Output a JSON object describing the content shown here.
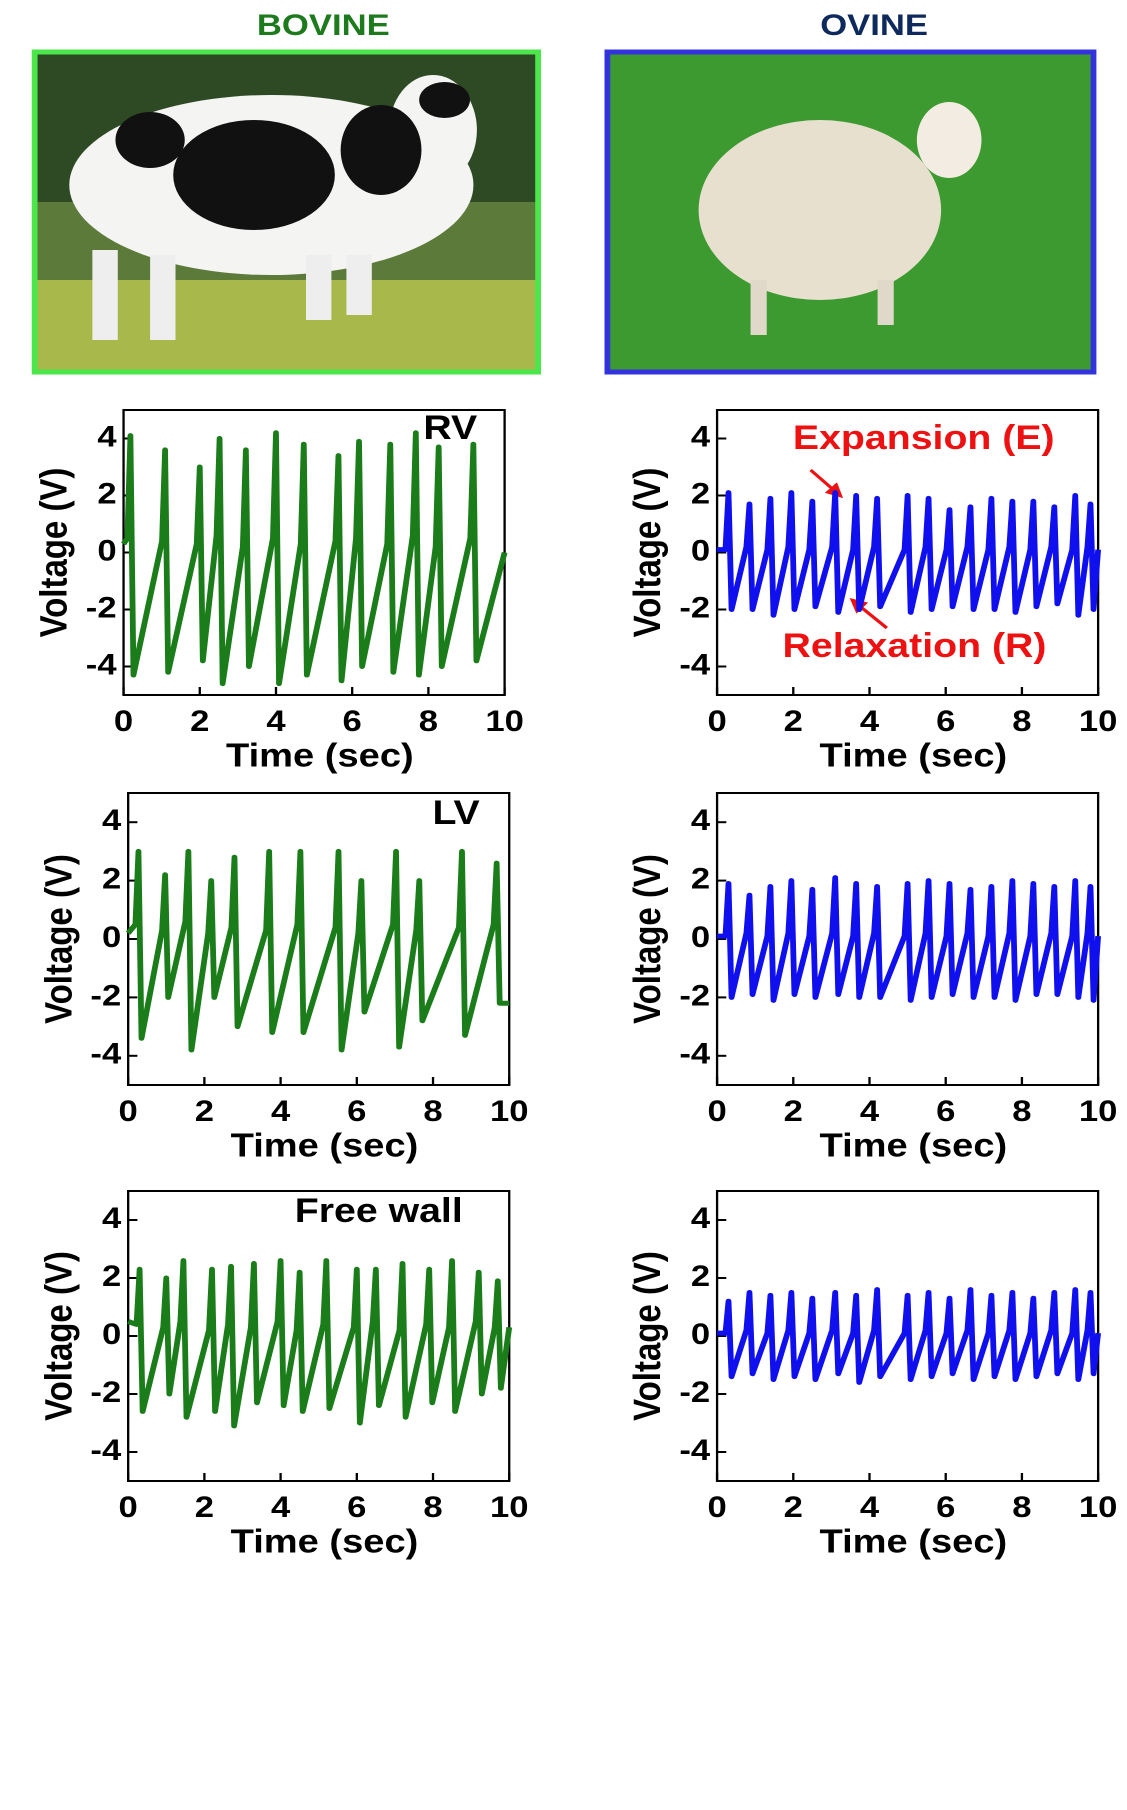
{
  "headers": [
    {
      "text": "BOVINE",
      "color": "#1d7a1d"
    },
    {
      "text": "OVINE",
      "color": "#0e2a5c"
    }
  ],
  "chart_data": [
    {
      "type": "line",
      "annotation": "RV",
      "xlabel": "Time (sec)",
      "ylabel": "Voltage (V)",
      "xlim": [
        0,
        10
      ],
      "ylim": [
        -5,
        5
      ],
      "xticks": [
        0,
        2,
        4,
        6,
        8,
        10
      ],
      "yticks": [
        -4,
        -2,
        0,
        2,
        4
      ],
      "x": [
        0,
        0.1,
        0.18,
        0.26,
        1.01,
        1.09,
        1.17,
        1.92,
        2.0,
        2.08,
        2.44,
        2.52,
        2.6,
        3.13,
        3.21,
        3.29,
        3.92,
        4.0,
        4.08,
        4.65,
        4.73,
        4.81,
        5.56,
        5.64,
        5.72,
        6.1,
        6.18,
        6.26,
        6.92,
        7.0,
        7.08,
        7.59,
        7.67,
        7.75,
        8.19,
        8.27,
        8.35,
        9.1,
        9.18,
        9.26,
        10
      ],
      "series": [
        {
          "color": "#1a7d1a",
          "values": [
            0.3,
            0.5,
            4.1,
            -4.3,
            0.4,
            3.6,
            -4.2,
            0.3,
            3.0,
            -3.8,
            0.6,
            4.0,
            -4.6,
            0.2,
            3.6,
            -4.0,
            0.5,
            4.2,
            -4.6,
            0.3,
            3.8,
            -4.3,
            0.4,
            3.4,
            -4.5,
            0.5,
            3.9,
            -4.0,
            0.3,
            3.8,
            -4.2,
            0.6,
            4.2,
            -4.3,
            0.2,
            3.7,
            -4.0,
            0.5,
            3.8,
            -3.8,
            0
          ]
        }
      ]
    },
    {
      "type": "line",
      "annotations": [
        "Expansion (E)",
        "Relaxation (R)"
      ],
      "xlabel": "Time (sec)",
      "ylabel": "Voltage (V)",
      "xlim": [
        0,
        10
      ],
      "ylim": [
        -5,
        5
      ],
      "xticks": [
        0,
        2,
        4,
        6,
        8,
        10
      ],
      "yticks": [
        -4,
        -2,
        0,
        2,
        4
      ],
      "x": [
        0,
        0.22,
        0.3,
        0.38,
        0.77,
        0.85,
        0.93,
        1.32,
        1.4,
        1.48,
        1.87,
        1.95,
        2.03,
        2.42,
        2.5,
        2.58,
        3.02,
        3.1,
        3.18,
        3.57,
        3.65,
        3.73,
        4.12,
        4.2,
        4.28,
        4.92,
        5.0,
        5.08,
        5.47,
        5.55,
        5.63,
        6.02,
        6.1,
        6.18,
        6.57,
        6.65,
        6.73,
        7.12,
        7.2,
        7.28,
        7.67,
        7.75,
        7.83,
        8.22,
        8.3,
        8.38,
        8.77,
        8.85,
        8.93,
        9.32,
        9.4,
        9.48,
        9.72,
        9.8,
        9.88,
        10
      ],
      "series": [
        {
          "color": "#1010ee",
          "values": [
            0.1,
            0.1,
            2.1,
            -2.0,
            0.2,
            1.7,
            -2.0,
            0.1,
            1.9,
            -2.2,
            0.2,
            2.1,
            -2.0,
            0.1,
            1.8,
            -1.9,
            0.2,
            2.1,
            -2.1,
            0.1,
            2.0,
            -2.0,
            0.2,
            1.9,
            -1.9,
            0.1,
            2.0,
            -2.1,
            0.2,
            1.9,
            -2.0,
            0.1,
            1.5,
            -1.9,
            0.2,
            1.6,
            -2.0,
            0.1,
            1.9,
            -2.0,
            0.2,
            1.8,
            -2.1,
            0.1,
            1.8,
            -1.9,
            0.2,
            1.6,
            -1.8,
            0.1,
            2.0,
            -2.2,
            0.2,
            1.7,
            -2.0,
            0.1
          ]
        }
      ]
    },
    {
      "type": "line",
      "annotation": "LV",
      "xlabel": "Time (sec)",
      "ylabel": "Voltage (V)",
      "xlim": [
        0,
        10
      ],
      "ylim": [
        -5,
        5
      ],
      "xticks": [
        0,
        2,
        4,
        6,
        8,
        10
      ],
      "yticks": [
        -4,
        -2,
        0,
        2,
        4
      ],
      "x": [
        0,
        0.19,
        0.27,
        0.35,
        0.89,
        0.97,
        1.05,
        1.5,
        1.58,
        1.66,
        2.1,
        2.18,
        2.26,
        2.71,
        2.79,
        2.87,
        3.62,
        3.7,
        3.78,
        4.44,
        4.52,
        4.6,
        5.44,
        5.52,
        5.6,
        6.04,
        6.12,
        6.2,
        6.95,
        7.03,
        7.11,
        7.56,
        7.64,
        7.72,
        8.68,
        8.76,
        8.84,
        9.59,
        9.67,
        9.75,
        10
      ],
      "series": [
        {
          "color": "#1a7d1a",
          "values": [
            0.2,
            0.5,
            3.0,
            -3.4,
            0.3,
            2.2,
            -2.0,
            0.6,
            3.0,
            -3.8,
            0.2,
            2.0,
            -2.0,
            0.4,
            2.8,
            -3.0,
            0.3,
            3.0,
            -3.2,
            0.5,
            3.0,
            -3.2,
            0.4,
            3.0,
            -3.8,
            0.2,
            2.0,
            -2.5,
            0.5,
            3.0,
            -3.7,
            0.3,
            2.0,
            -2.8,
            0.4,
            3.0,
            -3.3,
            0.5,
            2.6,
            -2.2,
            -2.2
          ]
        }
      ]
    },
    {
      "type": "line",
      "xlabel": "Time (sec)",
      "ylabel": "Voltage (V)",
      "xlim": [
        0,
        10
      ],
      "ylim": [
        -5,
        5
      ],
      "xticks": [
        0,
        2,
        4,
        6,
        8,
        10
      ],
      "yticks": [
        -4,
        -2,
        0,
        2,
        4
      ],
      "x": [
        0,
        0.22,
        0.3,
        0.38,
        0.77,
        0.85,
        0.93,
        1.32,
        1.4,
        1.48,
        1.87,
        1.95,
        2.03,
        2.42,
        2.5,
        2.58,
        3.02,
        3.1,
        3.18,
        3.57,
        3.65,
        3.73,
        4.12,
        4.2,
        4.28,
        4.92,
        5.0,
        5.08,
        5.47,
        5.55,
        5.63,
        6.02,
        6.1,
        6.18,
        6.57,
        6.65,
        6.73,
        7.12,
        7.2,
        7.28,
        7.67,
        7.75,
        7.83,
        8.22,
        8.3,
        8.38,
        8.77,
        8.85,
        8.93,
        9.32,
        9.4,
        9.48,
        9.72,
        9.8,
        9.88,
        10
      ],
      "series": [
        {
          "color": "#1010ee",
          "values": [
            0.1,
            0.1,
            1.9,
            -2.0,
            0.2,
            1.5,
            -1.9,
            0.1,
            1.8,
            -2.1,
            0.2,
            2.0,
            -1.9,
            0.1,
            1.7,
            -2.0,
            0.2,
            2.1,
            -1.9,
            0.1,
            1.9,
            -2.0,
            0.2,
            1.8,
            -2.0,
            0.1,
            1.9,
            -2.1,
            0.2,
            2.0,
            -2.0,
            0.1,
            1.9,
            -1.9,
            0.2,
            1.7,
            -2.0,
            0.1,
            1.8,
            -2.0,
            0.2,
            2.0,
            -2.1,
            0.1,
            1.9,
            -1.9,
            0.2,
            1.8,
            -1.9,
            0.1,
            2.0,
            -2.0,
            0.2,
            1.8,
            -2.1,
            0.1
          ]
        }
      ]
    },
    {
      "type": "line",
      "annotation": "Free wall",
      "xlabel": "Time (sec)",
      "ylabel": "Voltage (V)",
      "xlim": [
        0,
        10
      ],
      "ylim": [
        -5,
        5
      ],
      "xticks": [
        0,
        2,
        4,
        6,
        8,
        10
      ],
      "yticks": [
        -4,
        -2,
        0,
        2,
        4
      ],
      "x": [
        0,
        0.22,
        0.3,
        0.38,
        0.92,
        1.0,
        1.08,
        1.37,
        1.45,
        1.53,
        2.12,
        2.2,
        2.28,
        2.62,
        2.7,
        2.78,
        3.22,
        3.3,
        3.38,
        3.92,
        4.0,
        4.08,
        4.42,
        4.5,
        4.58,
        5.12,
        5.2,
        5.28,
        5.92,
        6.0,
        6.08,
        6.42,
        6.5,
        6.58,
        7.12,
        7.2,
        7.28,
        7.82,
        7.9,
        7.98,
        8.42,
        8.5,
        8.58,
        9.12,
        9.2,
        9.28,
        9.62,
        9.7,
        9.78,
        10
      ],
      "series": [
        {
          "color": "#1a7d1a",
          "values": [
            0.5,
            0.4,
            2.3,
            -2.6,
            0.3,
            2.0,
            -2.0,
            0.5,
            2.6,
            -2.8,
            0.2,
            2.3,
            -2.6,
            0.4,
            2.4,
            -3.1,
            0.3,
            2.5,
            -2.3,
            0.5,
            2.6,
            -2.4,
            0.2,
            2.2,
            -2.6,
            0.4,
            2.6,
            -2.5,
            0.3,
            2.3,
            -3.0,
            0.5,
            2.3,
            -2.4,
            0.2,
            2.5,
            -2.8,
            0.4,
            2.3,
            -2.3,
            0.3,
            2.6,
            -2.6,
            0.5,
            2.2,
            -2.0,
            0.3,
            1.9,
            -1.8,
            0.3
          ]
        }
      ]
    },
    {
      "type": "line",
      "xlabel": "Time (sec)",
      "ylabel": "Voltage (V)",
      "xlim": [
        0,
        10
      ],
      "ylim": [
        -5,
        5
      ],
      "xticks": [
        0,
        2,
        4,
        6,
        8,
        10
      ],
      "yticks": [
        -4,
        -2,
        0,
        2,
        4
      ],
      "x": [
        0,
        0.22,
        0.3,
        0.38,
        0.77,
        0.85,
        0.93,
        1.32,
        1.4,
        1.48,
        1.87,
        1.95,
        2.03,
        2.42,
        2.5,
        2.58,
        3.02,
        3.1,
        3.18,
        3.57,
        3.65,
        3.73,
        4.12,
        4.2,
        4.28,
        4.92,
        5.0,
        5.08,
        5.47,
        5.55,
        5.63,
        6.02,
        6.1,
        6.18,
        6.57,
        6.65,
        6.73,
        7.12,
        7.2,
        7.28,
        7.67,
        7.75,
        7.83,
        8.22,
        8.3,
        8.38,
        8.77,
        8.85,
        8.93,
        9.32,
        9.4,
        9.48,
        9.72,
        9.8,
        9.88,
        10
      ],
      "series": [
        {
          "color": "#1010ee",
          "values": [
            0.1,
            0.1,
            1.2,
            -1.4,
            0.2,
            1.5,
            -1.3,
            0.1,
            1.4,
            -1.5,
            0.2,
            1.5,
            -1.4,
            0.1,
            1.3,
            -1.5,
            0.2,
            1.5,
            -1.3,
            0.1,
            1.4,
            -1.6,
            0.2,
            1.6,
            -1.4,
            0.1,
            1.4,
            -1.5,
            0.2,
            1.5,
            -1.4,
            0.1,
            1.3,
            -1.3,
            0.2,
            1.6,
            -1.5,
            0.1,
            1.4,
            -1.4,
            0.2,
            1.5,
            -1.5,
            0.1,
            1.3,
            -1.4,
            0.2,
            1.5,
            -1.3,
            0.1,
            1.6,
            -1.5,
            0.2,
            1.5,
            -1.3,
            0.1
          ]
        }
      ]
    }
  ]
}
